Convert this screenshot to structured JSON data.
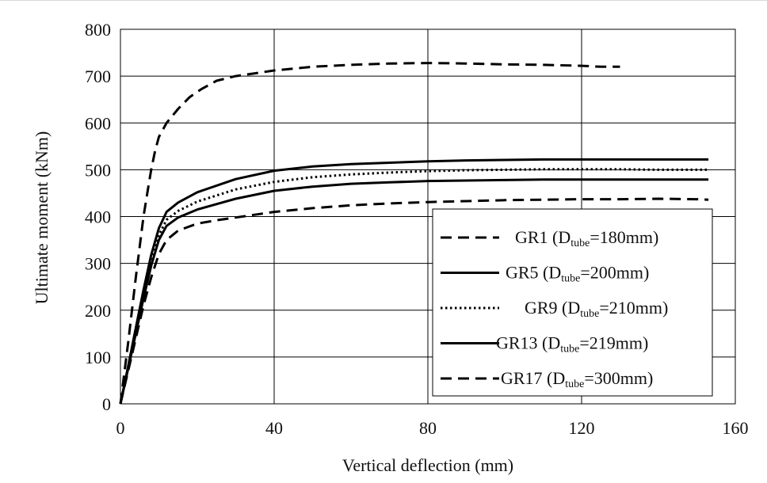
{
  "chart_data": {
    "type": "line",
    "title": "",
    "xlabel": "Vertical deflection (mm)",
    "ylabel": "Ultimate moment (kNm)",
    "xlim": [
      0,
      160
    ],
    "ylim": [
      0,
      800
    ],
    "x_ticks": [
      0,
      40,
      80,
      120,
      160
    ],
    "y_ticks": [
      0,
      100,
      200,
      300,
      400,
      500,
      600,
      700,
      800
    ],
    "grid": true,
    "legend_placement": "bottom-right",
    "series": [
      {
        "name": "GR1",
        "legend_sub": "tube",
        "legend_value": "=180mm)",
        "line_style": "dashed",
        "color": "#000000",
        "x": [
          0,
          2,
          4,
          6,
          8,
          10,
          12,
          15,
          20,
          25,
          30,
          40,
          50,
          60,
          70,
          80,
          90,
          100,
          110,
          120,
          130,
          140,
          150,
          153
        ],
        "y": [
          0,
          70,
          140,
          210,
          270,
          320,
          350,
          370,
          385,
          392,
          398,
          410,
          418,
          424,
          428,
          431,
          433,
          435,
          436,
          437,
          437,
          438,
          437,
          436
        ]
      },
      {
        "name": "GR5",
        "legend_sub": "tube",
        "legend_value": "=200mm)",
        "line_style": "solid",
        "color": "#000000",
        "x": [
          0,
          2,
          4,
          6,
          8,
          10,
          12,
          15,
          20,
          30,
          40,
          50,
          60,
          70,
          80,
          90,
          100,
          110,
          120,
          130,
          140,
          150,
          153
        ],
        "y": [
          0,
          75,
          150,
          225,
          295,
          350,
          380,
          398,
          415,
          438,
          455,
          464,
          470,
          473,
          476,
          477,
          478,
          479,
          479,
          479,
          479,
          479,
          479
        ]
      },
      {
        "name": "GR9",
        "legend_sub": "tube",
        "legend_value": "=210mm)",
        "line_style": "dotted",
        "color": "#000000",
        "x": [
          0,
          2,
          4,
          6,
          8,
          10,
          12,
          15,
          20,
          30,
          40,
          50,
          60,
          70,
          80,
          90,
          100,
          110,
          120,
          130,
          140,
          150,
          153
        ],
        "y": [
          0,
          78,
          158,
          235,
          305,
          360,
          393,
          412,
          432,
          458,
          474,
          484,
          490,
          494,
          497,
          499,
          500,
          501,
          501,
          501,
          500,
          500,
          500
        ]
      },
      {
        "name": "GR13",
        "legend_sub": "tube",
        "legend_value": "=219mm)",
        "line_style": "solid",
        "color": "#000000",
        "x": [
          0,
          2,
          4,
          6,
          8,
          10,
          12,
          15,
          20,
          30,
          40,
          50,
          60,
          70,
          80,
          90,
          100,
          110,
          120,
          130,
          140,
          150,
          153
        ],
        "y": [
          0,
          80,
          162,
          243,
          318,
          375,
          410,
          430,
          452,
          480,
          498,
          507,
          512,
          515,
          518,
          520,
          521,
          522,
          522,
          522,
          522,
          522,
          522
        ]
      },
      {
        "name": "GR17",
        "legend_sub": "tube",
        "legend_value": "=300mm)",
        "line_style": "dashed",
        "color": "#000000",
        "x": [
          0,
          2,
          4,
          6,
          7,
          8,
          9,
          10,
          12,
          15,
          18,
          21,
          25,
          30,
          35,
          40,
          50,
          60,
          70,
          80,
          90,
          100,
          110,
          120,
          125,
          130
        ],
        "y": [
          0,
          130,
          270,
          400,
          450,
          500,
          540,
          570,
          600,
          630,
          655,
          672,
          690,
          700,
          706,
          712,
          720,
          724,
          727,
          728,
          727,
          725,
          724,
          722,
          720,
          720
        ]
      }
    ]
  }
}
